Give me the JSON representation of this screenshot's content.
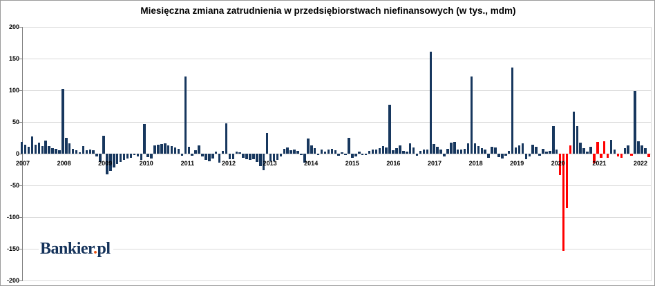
{
  "title": "Miesięczna zmiana zatrudnienia w przedsiębiorstwach niefinansowych (w tys., mdm)",
  "logo": {
    "part1": "Bankier",
    "dot": ".",
    "part2": "pl"
  },
  "colors": {
    "bar_navy": "#17375e",
    "bar_red": "#ff0000",
    "gridline": "#d9d9d9",
    "axis_line": "#808080",
    "logo_navy": "#14325a",
    "logo_dot": "#e8500f",
    "text": "#000000"
  },
  "chart_data": {
    "type": "bar",
    "title": "Miesięczna zmiana zatrudnienia w przedsiębiorstwach niefinansowych (w tys., mdm)",
    "xlabel": "",
    "ylabel": "",
    "unit": "tys. osób, miesiąc do miesiąca",
    "frequency": "monthly",
    "x_start": "2007-01",
    "x_end": "2022-05",
    "ylim": [
      -200,
      200
    ],
    "ytick_interval": 50,
    "yticks": [
      200,
      150,
      100,
      50,
      0,
      -50,
      -100,
      -150,
      -200
    ],
    "grid": "horizontal",
    "legend": "none",
    "highlight_color_meaning": "pandemic-period months shown in red",
    "series": [
      {
        "year": 2007,
        "values": [
          19,
          14,
          11,
          27,
          14,
          17,
          12,
          21,
          12,
          9,
          8,
          5
        ],
        "red_idx": []
      },
      {
        "year": 2008,
        "values": [
          102,
          25,
          16,
          8,
          5,
          2,
          12,
          5,
          7,
          5,
          -4,
          -13
        ],
        "red_idx": []
      },
      {
        "year": 2009,
        "values": [
          28,
          -33,
          -27,
          -22,
          -16,
          -13,
          -10,
          -8,
          -6,
          -2,
          -4,
          -10
        ],
        "red_idx": []
      },
      {
        "year": 2010,
        "values": [
          47,
          -5,
          -8,
          13,
          14,
          15,
          16,
          13,
          12,
          10,
          8,
          -3
        ],
        "red_idx": []
      },
      {
        "year": 2011,
        "values": [
          122,
          11,
          -3,
          5,
          13,
          -4,
          -10,
          -12,
          -8,
          3,
          -14,
          4
        ],
        "red_idx": []
      },
      {
        "year": 2012,
        "values": [
          48,
          -9,
          -9,
          3,
          2,
          -7,
          -9,
          -10,
          -9,
          -13,
          -20,
          -26
        ],
        "red_idx": []
      },
      {
        "year": 2013,
        "values": [
          33,
          -12,
          -12,
          -10,
          -4,
          8,
          10,
          5,
          6,
          4,
          -2,
          -14
        ],
        "red_idx": []
      },
      {
        "year": 2014,
        "values": [
          24,
          13,
          9,
          -2,
          7,
          3,
          6,
          8,
          5,
          -3,
          2,
          -2
        ],
        "red_idx": []
      },
      {
        "year": 2015,
        "values": [
          25,
          -6,
          -4,
          3,
          -2,
          -2,
          4,
          6,
          7,
          9,
          12,
          10
        ],
        "red_idx": []
      },
      {
        "year": 2016,
        "values": [
          77,
          5,
          9,
          13,
          4,
          3,
          16,
          10,
          -3,
          4,
          7,
          7
        ],
        "red_idx": []
      },
      {
        "year": 2017,
        "values": [
          161,
          15,
          11,
          6,
          -4,
          8,
          17,
          19,
          6,
          6,
          8,
          16
        ],
        "red_idx": []
      },
      {
        "year": 2018,
        "values": [
          122,
          16,
          12,
          9,
          7,
          -6,
          11,
          10,
          -5,
          -8,
          -3,
          4
        ],
        "red_idx": []
      },
      {
        "year": 2019,
        "values": [
          136,
          10,
          13,
          16,
          -9,
          -4,
          14,
          11,
          -3,
          8,
          3,
          4
        ],
        "red_idx": []
      },
      {
        "year": 2020,
        "values": [
          44,
          6,
          -34,
          -153,
          -86,
          13,
          66,
          44,
          17,
          9,
          3,
          11
        ],
        "red_idx": [
          2,
          3,
          4,
          5
        ]
      },
      {
        "year": 2021,
        "values": [
          -15,
          19,
          -7,
          20,
          -7,
          22,
          6,
          -4,
          -6,
          9,
          13,
          -3
        ],
        "red_idx": [
          0,
          1,
          2,
          3,
          4,
          7,
          8,
          11
        ]
      },
      {
        "year": 2022,
        "values": [
          99,
          20,
          13,
          9,
          -5
        ],
        "red_idx": [
          4
        ]
      }
    ]
  }
}
